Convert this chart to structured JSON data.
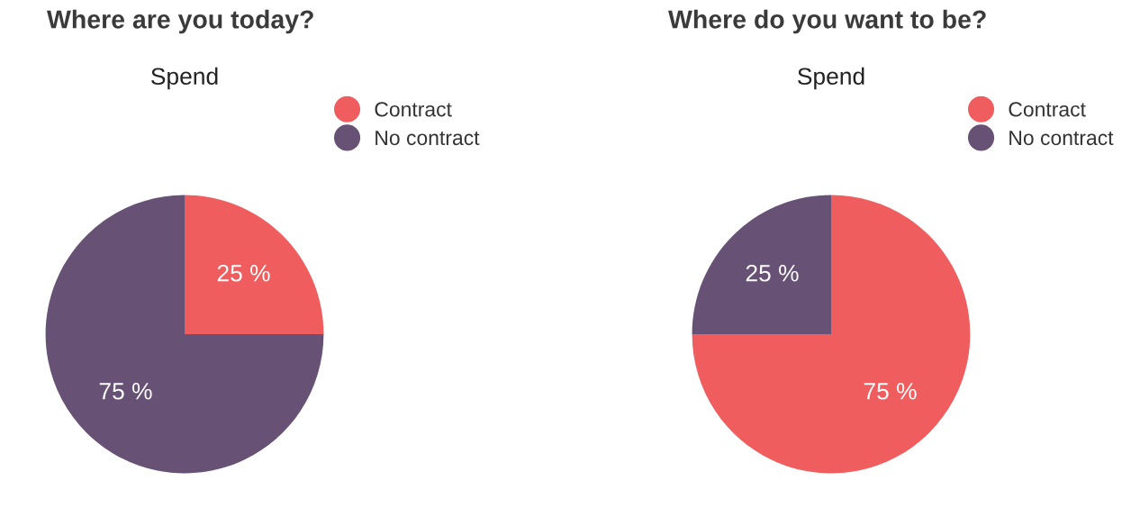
{
  "chart_data": [
    {
      "type": "pie",
      "title": "Where are you today?",
      "subtitle": "Spend",
      "categories": [
        "Contract",
        "No contract"
      ],
      "values": [
        25,
        75
      ],
      "colors": [
        "#f05d5e",
        "#675175"
      ],
      "value_labels": [
        "25 %",
        "75 %"
      ],
      "legend": "top right"
    },
    {
      "type": "pie",
      "title": "Where do you want to be?",
      "subtitle": "Spend",
      "categories": [
        "Contract",
        "No contract"
      ],
      "values": [
        75,
        25
      ],
      "colors": [
        "#f05d5e",
        "#675175"
      ],
      "value_labels": [
        "75 %",
        "25 %"
      ],
      "legend": "top right"
    }
  ]
}
